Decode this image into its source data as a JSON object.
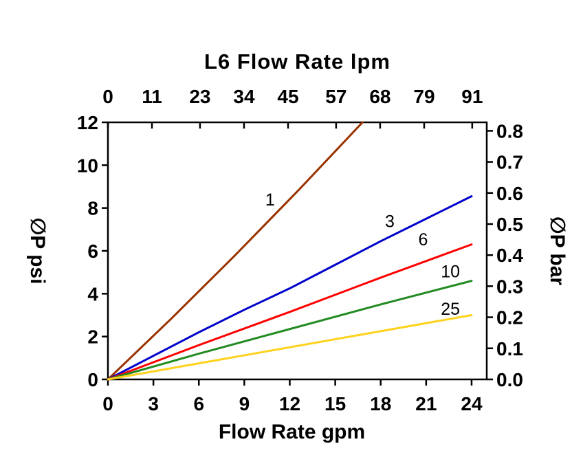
{
  "page": {
    "background": "#ffffff",
    "axis_color": "#000000"
  },
  "chart_data": {
    "type": "line",
    "title": "",
    "grid": false,
    "legend": "inline-labels",
    "axes": {
      "top": {
        "label": "L6 Flow Rate lpm",
        "unit": "lpm",
        "ticks": [
          "0",
          "11",
          "23",
          "34",
          "45",
          "57",
          "68",
          "79",
          "91"
        ]
      },
      "bottom": {
        "label": "Flow Rate gpm",
        "unit": "gpm",
        "ticks": [
          "0",
          "3",
          "6",
          "9",
          "12",
          "15",
          "18",
          "21",
          "24"
        ],
        "range": [
          0,
          25
        ]
      },
      "left": {
        "label": "∅P psi",
        "unit": "psi",
        "ticks": [
          "0",
          "2",
          "4",
          "6",
          "8",
          "10",
          "12"
        ],
        "range": [
          0,
          12
        ]
      },
      "right": {
        "label": "∅P bar",
        "unit": "bar",
        "ticks": [
          "0.0",
          "0.1",
          "0.2",
          "0.3",
          "0.4",
          "0.5",
          "0.6",
          "0.7",
          "0.8"
        ]
      }
    },
    "conversions": {
      "lpm_per_gpm": 3.7854,
      "psi_per_bar": 14.5038
    },
    "series": [
      {
        "name": "1",
        "color": "#993300",
        "x": [
          0,
          4.2,
          8.4,
          12.6,
          16.8
        ],
        "y": [
          0,
          2.85,
          5.8,
          8.85,
          12.0
        ],
        "label_pos": [
          10.7,
          8.4
        ]
      },
      {
        "name": "3",
        "color": "#0000CC",
        "x": [
          0,
          3,
          6,
          9,
          12,
          15,
          18,
          21,
          24
        ],
        "y": [
          0,
          1.1,
          2.2,
          3.25,
          4.25,
          5.35,
          6.45,
          7.5,
          8.55
        ],
        "label_pos": [
          18.6,
          7.4
        ]
      },
      {
        "name": "6",
        "color": "#FF0000",
        "x": [
          0,
          6,
          12,
          18,
          24
        ],
        "y": [
          0,
          1.6,
          3.15,
          4.75,
          6.3
        ],
        "label_pos": [
          20.8,
          6.55
        ]
      },
      {
        "name": "10",
        "color": "#228B22",
        "x": [
          0,
          6,
          12,
          18,
          24
        ],
        "y": [
          0,
          1.2,
          2.35,
          3.5,
          4.6
        ],
        "label_pos": [
          22.6,
          5.05
        ]
      },
      {
        "name": "25",
        "color": "#FFD21E",
        "x": [
          0,
          6,
          12,
          18,
          24
        ],
        "y": [
          0,
          0.75,
          1.5,
          2.25,
          3.0
        ],
        "label_pos": [
          22.6,
          3.3
        ]
      }
    ]
  }
}
